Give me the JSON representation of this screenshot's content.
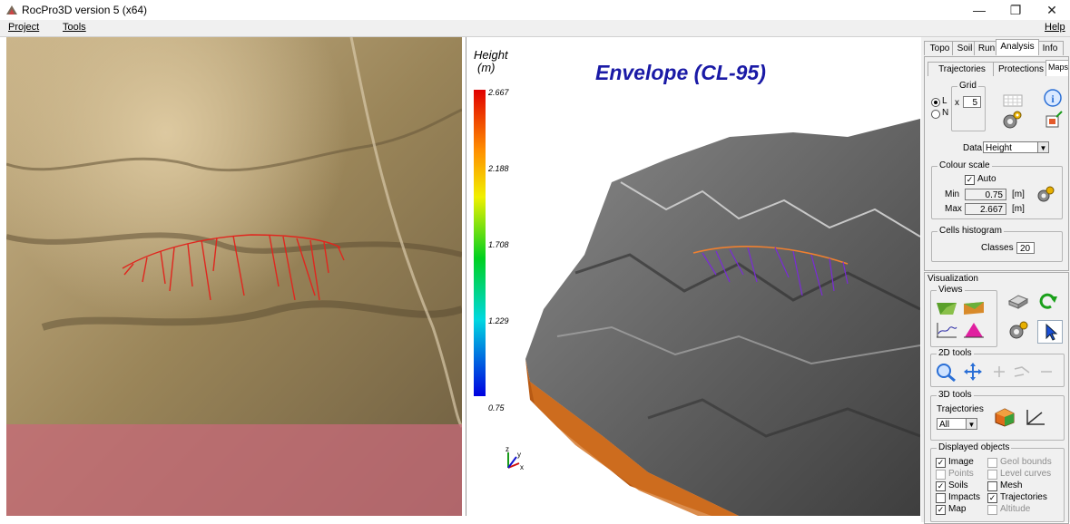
{
  "window": {
    "title": "RocPro3D version 5 (x64)",
    "min_glyph": "—",
    "max_glyph": "❐",
    "close_glyph": "✕"
  },
  "menubar": {
    "project": "Project",
    "tools": "Tools",
    "help": "Help"
  },
  "view3d": {
    "title": "Envelope (CL-95)",
    "legend": {
      "title_line1": "Height",
      "title_line2": "(m)",
      "ticks": [
        "2.667",
        "2.188",
        "1.708",
        "1.229",
        "0.75"
      ]
    },
    "axes": {
      "z": "z",
      "y": "y",
      "x": "x"
    }
  },
  "panel": {
    "tabs": [
      "Topo",
      "Soil",
      "Run",
      "Analysis",
      "Info"
    ],
    "subtabs": [
      "Trajectories",
      "Protections",
      "Maps"
    ],
    "grid": {
      "title": "Grid",
      "opt_l": "L",
      "opt_n": "N",
      "x_label": "x",
      "value": "5"
    },
    "data": {
      "label": "Data",
      "value": "Height"
    },
    "colour_scale": {
      "title": "Colour scale",
      "auto": "Auto",
      "min_label": "Min",
      "min_value": "0.75",
      "max_label": "Max",
      "max_value": "2.667",
      "unit": "[m]"
    },
    "histogram": {
      "title": "Cells histogram",
      "classes_label": "Classes",
      "classes_value": "20"
    },
    "visualization": {
      "title": "Visualization",
      "views": "Views",
      "tools2d": "2D tools",
      "tools3d": "3D tools",
      "trajectories_label": "Trajectories",
      "trajectories_value": "All"
    },
    "displayed": {
      "title": "Displayed objects",
      "items": [
        "Image",
        "Geol bounds",
        "Points",
        "Level curves",
        "Soils",
        "Mesh",
        "Impacts",
        "Trajectories",
        "Map",
        "Altitude"
      ],
      "checked": [
        true,
        false,
        false,
        false,
        true,
        false,
        false,
        true,
        true,
        false
      ]
    }
  },
  "colors": {
    "accent_title": "#1a1aa6",
    "legend_top": "#e00000",
    "legend_bottom": "#0000e0",
    "trajectory": "#e0261e"
  }
}
